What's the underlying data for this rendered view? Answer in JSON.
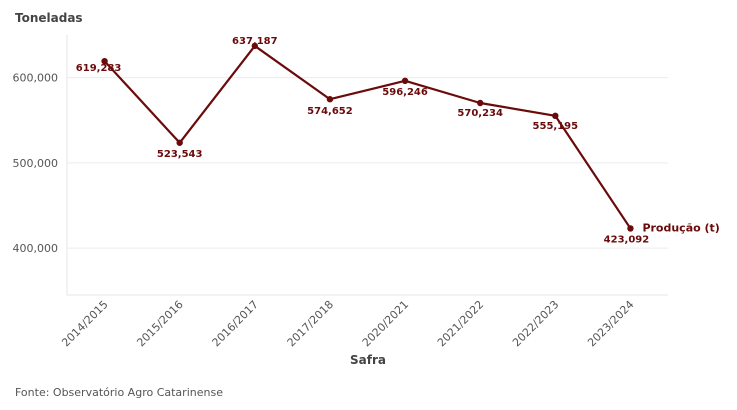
{
  "chart_data": {
    "type": "line",
    "ylabel": "Toneladas",
    "xlabel": "Safra",
    "categories": [
      "2014/2015",
      "2015/2016",
      "2016/2017",
      "2017/2018",
      "2020/2021",
      "2021/2022",
      "2022/2023",
      "2023/2024"
    ],
    "series": [
      {
        "name": "Produção (t)",
        "values": [
          619283,
          523543,
          637187,
          574652,
          596246,
          570234,
          555195,
          423092
        ],
        "labels": [
          "619,283",
          "523,543",
          "637,187",
          "574,652",
          "596,246",
          "570,234",
          "555,195",
          "423,092"
        ]
      }
    ],
    "yticks": [
      400000,
      500000,
      600000
    ],
    "ytick_labels": [
      "400,000",
      "500,000",
      "600,000"
    ],
    "ylim": [
      345000,
      650000
    ],
    "grid": true,
    "color": "#6b0a0a"
  },
  "footer": {
    "source": "Fonte: Observatório Agro Catarinense"
  }
}
